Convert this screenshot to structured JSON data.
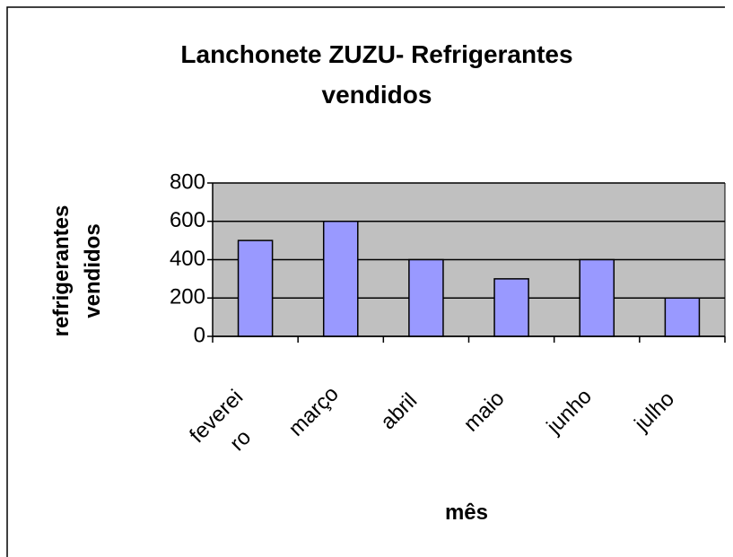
{
  "chart_data": {
    "type": "bar",
    "title": "Lanchonete ZUZU- Refrigerantes vendidos",
    "x_label": "mês",
    "y_label": "refrigerantes vendidos",
    "categories": [
      "fevereiro",
      "março",
      "abril",
      "maio",
      "junho",
      "julho"
    ],
    "values": [
      500,
      600,
      400,
      300,
      400,
      200
    ],
    "color": "#9999ff",
    "ylim": [
      0,
      800
    ],
    "yticks": [
      0,
      200,
      400,
      600,
      800
    ],
    "grid": true
  }
}
